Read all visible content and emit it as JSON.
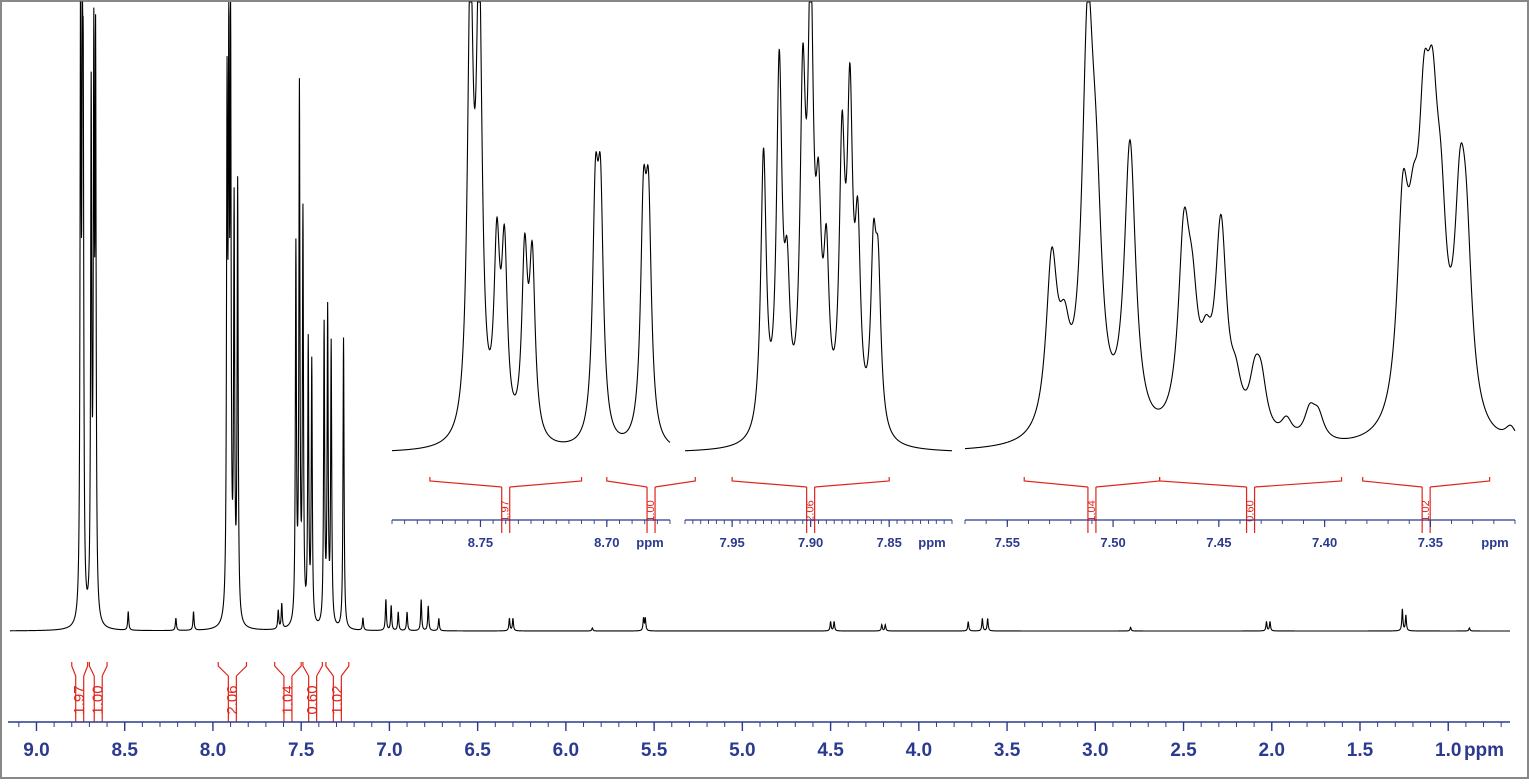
{
  "chart_data": {
    "type": "line",
    "title": "",
    "xlabel": "ppm",
    "ylabel": "",
    "colors": {
      "trace": "#000000",
      "axis": "#2b3a8f",
      "integral": "#e0251b",
      "border": "#888888"
    },
    "main": {
      "xlim": [
        9.15,
        0.65
      ],
      "ticks": [
        9.0,
        8.5,
        8.0,
        7.5,
        7.0,
        6.5,
        6.0,
        5.5,
        5.0,
        4.5,
        4.0,
        3.5,
        3.0,
        2.5,
        2.0,
        1.5,
        1.0
      ],
      "tick_labels": [
        "9.0",
        "8.5",
        "8.0",
        "7.5",
        "7.0",
        "6.5",
        "6.0",
        "5.5",
        "5.0",
        "4.5",
        "4.0",
        "3.5",
        "3.0",
        "2.5",
        "2.0",
        "1.5",
        "1.0"
      ],
      "unit": "ppm",
      "peaks": [
        {
          "ppm": 8.75,
          "height": 1.0
        },
        {
          "ppm": 8.74,
          "height": 0.68
        },
        {
          "ppm": 8.735,
          "height": 0.68
        },
        {
          "ppm": 8.69,
          "height": 0.83
        },
        {
          "ppm": 8.675,
          "height": 0.86
        },
        {
          "ppm": 8.665,
          "height": 0.88
        },
        {
          "ppm": 8.48,
          "height": 0.03
        },
        {
          "ppm": 8.21,
          "height": 0.02
        },
        {
          "ppm": 8.11,
          "height": 0.03
        },
        {
          "ppm": 7.92,
          "height": 0.8
        },
        {
          "ppm": 7.91,
          "height": 0.85
        },
        {
          "ppm": 7.9,
          "height": 0.9
        },
        {
          "ppm": 7.88,
          "height": 0.65
        },
        {
          "ppm": 7.86,
          "height": 0.7
        },
        {
          "ppm": 7.63,
          "height": 0.03
        },
        {
          "ppm": 7.61,
          "height": 0.04
        },
        {
          "ppm": 7.53,
          "height": 0.6
        },
        {
          "ppm": 7.51,
          "height": 0.85
        },
        {
          "ppm": 7.49,
          "height": 0.65
        },
        {
          "ppm": 7.46,
          "height": 0.45
        },
        {
          "ppm": 7.44,
          "height": 0.42
        },
        {
          "ppm": 7.37,
          "height": 0.48
        },
        {
          "ppm": 7.35,
          "height": 0.5
        },
        {
          "ppm": 7.33,
          "height": 0.45
        },
        {
          "ppm": 7.26,
          "height": 0.47
        },
        {
          "ppm": 7.15,
          "height": 0.02
        },
        {
          "ppm": 7.02,
          "height": 0.05
        },
        {
          "ppm": 6.99,
          "height": 0.04
        },
        {
          "ppm": 6.95,
          "height": 0.03
        },
        {
          "ppm": 6.9,
          "height": 0.03
        },
        {
          "ppm": 6.82,
          "height": 0.05
        },
        {
          "ppm": 6.78,
          "height": 0.04
        },
        {
          "ppm": 6.72,
          "height": 0.02
        },
        {
          "ppm": 6.32,
          "height": 0.02
        },
        {
          "ppm": 6.3,
          "height": 0.02
        },
        {
          "ppm": 5.85,
          "height": 0.005
        },
        {
          "ppm": 5.56,
          "height": 0.02
        },
        {
          "ppm": 5.55,
          "height": 0.02
        },
        {
          "ppm": 4.5,
          "height": 0.015
        },
        {
          "ppm": 4.48,
          "height": 0.015
        },
        {
          "ppm": 4.21,
          "height": 0.01
        },
        {
          "ppm": 4.19,
          "height": 0.01
        },
        {
          "ppm": 3.72,
          "height": 0.015
        },
        {
          "ppm": 3.64,
          "height": 0.02
        },
        {
          "ppm": 3.61,
          "height": 0.02
        },
        {
          "ppm": 2.8,
          "height": 0.006
        },
        {
          "ppm": 2.03,
          "height": 0.015
        },
        {
          "ppm": 2.01,
          "height": 0.015
        },
        {
          "ppm": 1.26,
          "height": 0.035
        },
        {
          "ppm": 1.24,
          "height": 0.025
        },
        {
          "ppm": 0.88,
          "height": 0.005
        }
      ],
      "integrals": [
        {
          "label": "1.97",
          "from": 8.8,
          "to": 8.71
        },
        {
          "label": "1.00",
          "from": 8.7,
          "to": 8.6
        },
        {
          "label": "2.06",
          "from": 7.97,
          "to": 7.81
        },
        {
          "label": "1.04",
          "from": 7.65,
          "to": 7.5
        },
        {
          "label": "0.60",
          "from": 7.49,
          "to": 7.38
        },
        {
          "label": "1.02",
          "from": 7.36,
          "to": 7.23
        }
      ]
    },
    "insets": [
      {
        "xlim": [
          8.785,
          8.675
        ],
        "ticks": [
          8.75,
          8.7
        ],
        "tick_labels": [
          "8.75",
          "8.70"
        ],
        "unit": "ppm",
        "peaks": [
          {
            "ppm": 8.754,
            "height": 1.0
          },
          {
            "ppm": 8.7505,
            "height": 1.0
          },
          {
            "ppm": 8.7435,
            "height": 0.4
          },
          {
            "ppm": 8.7405,
            "height": 0.4
          },
          {
            "ppm": 8.7325,
            "height": 0.4
          },
          {
            "ppm": 8.7295,
            "height": 0.39
          },
          {
            "ppm": 8.7045,
            "height": 0.5
          },
          {
            "ppm": 8.7025,
            "height": 0.5
          },
          {
            "ppm": 8.6855,
            "height": 0.48
          },
          {
            "ppm": 8.6835,
            "height": 0.48
          }
        ],
        "integrals": [
          {
            "label": "1.97",
            "from": 8.77,
            "to": 8.71
          },
          {
            "label": "1.00",
            "from": 8.7,
            "to": 8.665
          }
        ]
      },
      {
        "xlim": [
          7.98,
          7.81
        ],
        "ticks": [
          7.95,
          7.9,
          7.85
        ],
        "tick_labels": [
          "7.95",
          "7.90",
          "7.85"
        ],
        "unit": "ppm",
        "peaks": [
          {
            "ppm": 7.93,
            "height": 0.55
          },
          {
            "ppm": 7.92,
            "height": 0.7
          },
          {
            "ppm": 7.915,
            "height": 0.25
          },
          {
            "ppm": 7.905,
            "height": 0.62
          },
          {
            "ppm": 7.9,
            "height": 0.8
          },
          {
            "ppm": 7.895,
            "height": 0.35
          },
          {
            "ppm": 7.89,
            "height": 0.3
          },
          {
            "ppm": 7.88,
            "height": 0.52
          },
          {
            "ppm": 7.875,
            "height": 0.6
          },
          {
            "ppm": 7.87,
            "height": 0.35
          },
          {
            "ppm": 7.86,
            "height": 0.32
          },
          {
            "ppm": 7.857,
            "height": 0.28
          }
        ],
        "integrals": [
          {
            "label": "2.06",
            "from": 7.95,
            "to": 7.85
          }
        ]
      },
      {
        "xlim": [
          7.57,
          7.31
        ],
        "ticks": [
          7.55,
          7.5,
          7.45,
          7.4,
          7.35
        ],
        "tick_labels": [
          "7.55",
          "7.50",
          "7.45",
          "7.40",
          "7.35"
        ],
        "unit": "ppm",
        "peaks": [
          {
            "ppm": 7.529,
            "height": 0.35
          },
          {
            "ppm": 7.523,
            "height": 0.15
          },
          {
            "ppm": 7.512,
            "height": 0.78
          },
          {
            "ppm": 7.508,
            "height": 0.35
          },
          {
            "ppm": 7.492,
            "height": 0.6
          },
          {
            "ppm": 7.4665,
            "height": 0.38
          },
          {
            "ppm": 7.4625,
            "height": 0.2
          },
          {
            "ppm": 7.456,
            "height": 0.12
          },
          {
            "ppm": 7.449,
            "height": 0.42
          },
          {
            "ppm": 7.442,
            "height": 0.08
          },
          {
            "ppm": 7.433,
            "height": 0.1
          },
          {
            "ppm": 7.43,
            "height": 0.1
          },
          {
            "ppm": 7.418,
            "height": 0.04
          },
          {
            "ppm": 7.407,
            "height": 0.06
          },
          {
            "ppm": 7.403,
            "height": 0.05
          },
          {
            "ppm": 7.363,
            "height": 0.42
          },
          {
            "ppm": 7.358,
            "height": 0.25
          },
          {
            "ppm": 7.353,
            "height": 0.47
          },
          {
            "ppm": 7.349,
            "height": 0.45
          },
          {
            "ppm": 7.345,
            "height": 0.3
          },
          {
            "ppm": 7.336,
            "height": 0.38
          },
          {
            "ppm": 7.333,
            "height": 0.3
          },
          {
            "ppm": 7.312,
            "height": 0.03
          }
        ],
        "integrals": [
          {
            "label": "1.04",
            "from": 7.542,
            "to": 7.478
          },
          {
            "label": "0.60",
            "from": 7.478,
            "to": 7.392
          },
          {
            "label": "1.02",
            "from": 7.382,
            "to": 7.322
          }
        ]
      }
    ]
  }
}
